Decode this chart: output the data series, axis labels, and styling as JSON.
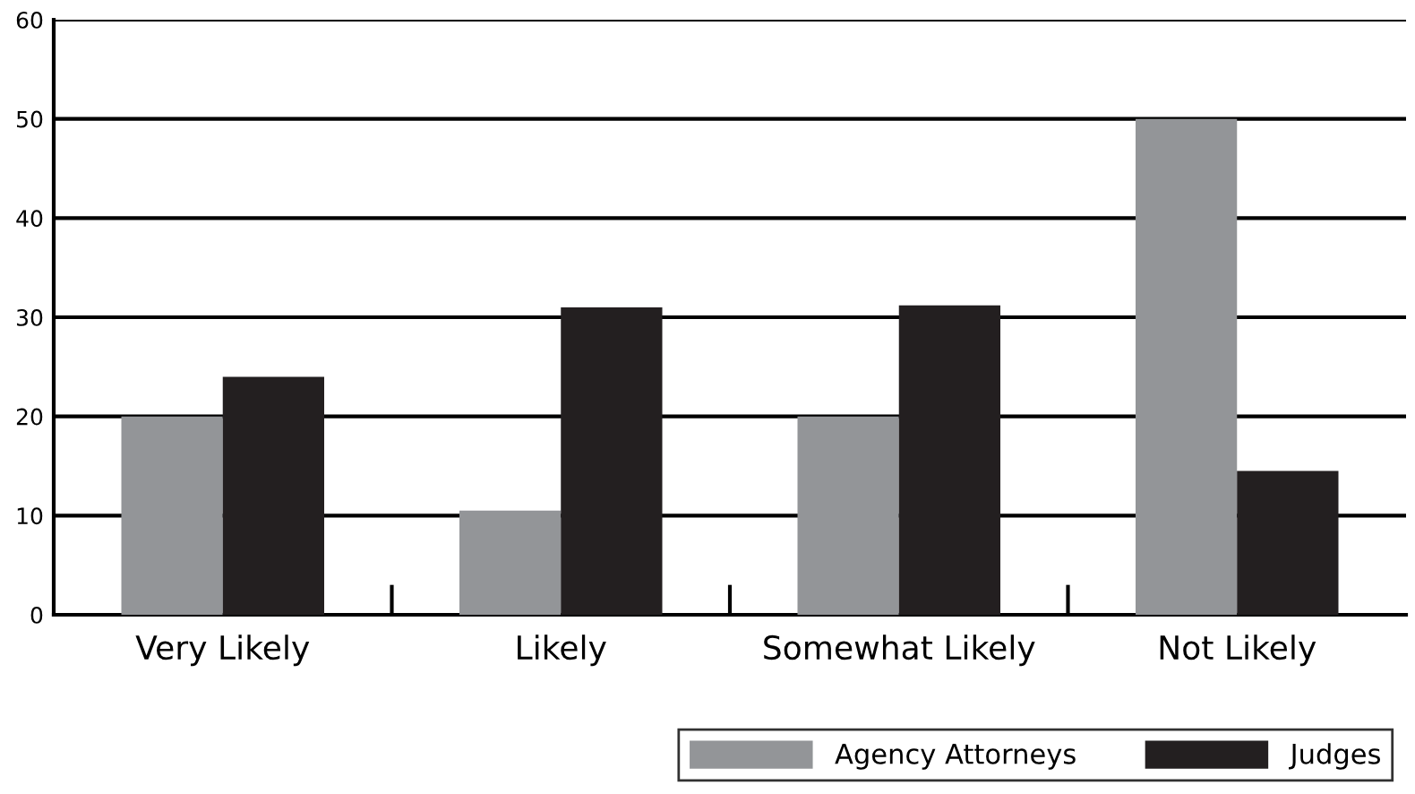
{
  "chart_data": {
    "type": "bar",
    "categories": [
      "Very Likely",
      "Likely",
      "Somewhat Likely",
      "Not Likely"
    ],
    "series": [
      {
        "name": "Agency Attorneys",
        "color": "#939598",
        "values": [
          20,
          10.5,
          20,
          50
        ]
      },
      {
        "name": "Judges",
        "color": "#231f20",
        "values": [
          24,
          31,
          31.2,
          14.5
        ]
      }
    ],
    "ylim": [
      0,
      60
    ],
    "yticks": [
      0,
      10,
      20,
      30,
      40,
      50,
      60
    ],
    "grid": "y",
    "legend": "bottom right"
  }
}
